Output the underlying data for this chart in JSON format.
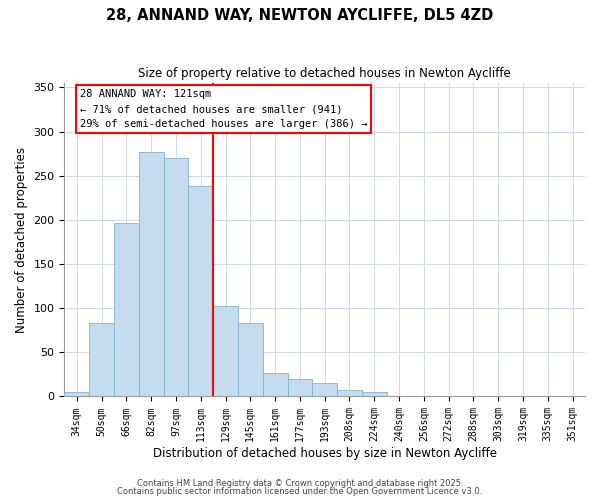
{
  "title": "28, ANNAND WAY, NEWTON AYCLIFFE, DL5 4ZD",
  "subtitle": "Size of property relative to detached houses in Newton Aycliffe",
  "xlabel": "Distribution of detached houses by size in Newton Aycliffe",
  "ylabel": "Number of detached properties",
  "bin_labels": [
    "34sqm",
    "50sqm",
    "66sqm",
    "82sqm",
    "97sqm",
    "113sqm",
    "129sqm",
    "145sqm",
    "161sqm",
    "177sqm",
    "193sqm",
    "208sqm",
    "224sqm",
    "240sqm",
    "256sqm",
    "272sqm",
    "288sqm",
    "303sqm",
    "319sqm",
    "335sqm",
    "351sqm"
  ],
  "bar_values": [
    5,
    83,
    196,
    277,
    270,
    238,
    103,
    83,
    27,
    20,
    15,
    7,
    5,
    0,
    0,
    0,
    0,
    1,
    0,
    1,
    0
  ],
  "bar_color": "#c5dcee",
  "bar_edge_color": "#7fb3d3",
  "vline_x": 5.5,
  "vline_color": "red",
  "annotation_title": "28 ANNAND WAY: 121sqm",
  "annotation_line1": "← 71% of detached houses are smaller (941)",
  "annotation_line2": "29% of semi-detached houses are larger (386) →",
  "annotation_box_color": "white",
  "annotation_box_edge": "red",
  "ylim": [
    0,
    355
  ],
  "yticks": [
    0,
    50,
    100,
    150,
    200,
    250,
    300,
    350
  ],
  "footnote1": "Contains HM Land Registry data © Crown copyright and database right 2025.",
  "footnote2": "Contains public sector information licensed under the Open Government Licence v3.0.",
  "bg_color": "white",
  "grid_color": "#ccd9e8"
}
